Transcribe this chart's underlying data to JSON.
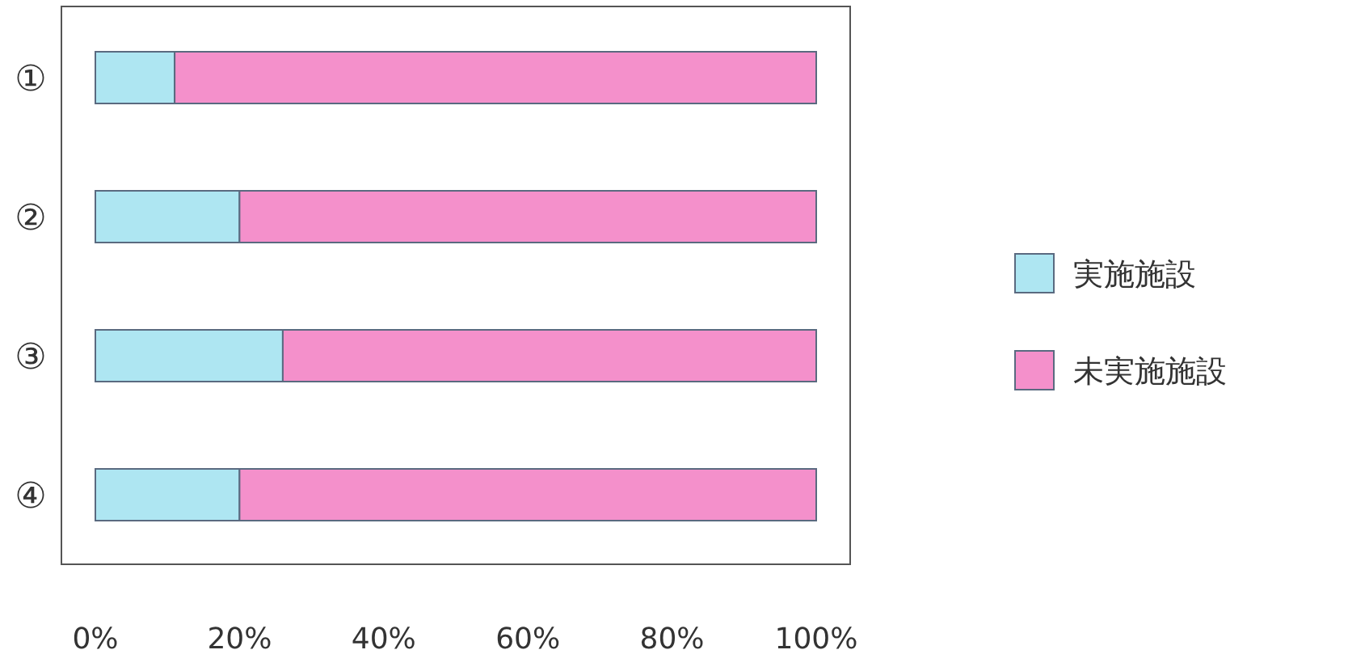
{
  "chart_data": {
    "type": "bar",
    "orientation": "horizontal",
    "stacked": true,
    "categories": [
      "①",
      "②",
      "③",
      "④"
    ],
    "series": [
      {
        "name": "実施施設",
        "color": "#aee6f2",
        "values": [
          11,
          20,
          26,
          20
        ]
      },
      {
        "name": "未実施施設",
        "color": "#f490cb",
        "values": [
          89,
          80,
          74,
          80
        ]
      }
    ],
    "xlim": [
      0,
      100
    ],
    "xticks": [
      {
        "value": 0,
        "label": "0%"
      },
      {
        "value": 20,
        "label": "20%"
      },
      {
        "value": 40,
        "label": "40%"
      },
      {
        "value": 60,
        "label": "60%"
      },
      {
        "value": 80,
        "label": "80%"
      },
      {
        "value": 100,
        "label": "100%"
      }
    ],
    "grid": false,
    "legend": "right"
  }
}
